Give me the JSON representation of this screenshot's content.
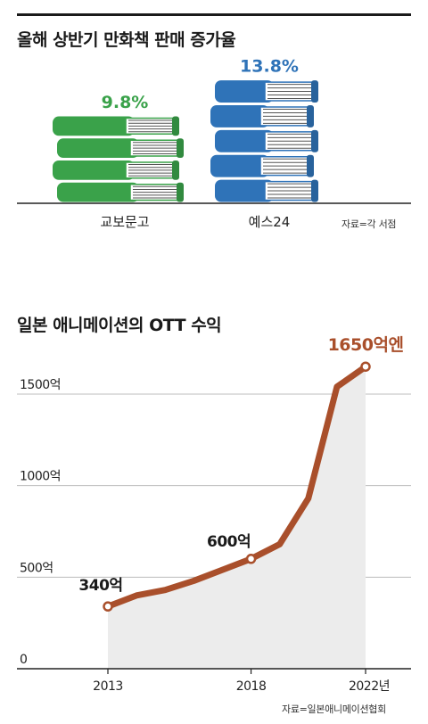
{
  "chart_data": [
    {
      "type": "bar",
      "title": "올해 상반기 만화책 판매 증가율",
      "categories": [
        "교보문고",
        "예스24"
      ],
      "values": [
        9.8,
        13.8
      ],
      "value_labels": [
        "9.8%",
        "13.8%"
      ],
      "unit": "%",
      "colors": [
        "#3aa24a",
        "#2f73b8"
      ],
      "source": "자료=각 서점"
    },
    {
      "type": "area",
      "title": "일본 애니메이션의 OTT 수익",
      "x": [
        2013,
        2014,
        2015,
        2016,
        2017,
        2018,
        2019,
        2020,
        2021,
        2022
      ],
      "values": [
        340,
        400,
        430,
        480,
        540,
        600,
        680,
        930,
        1540,
        1650
      ],
      "x_ticks": [
        "2013",
        "2018",
        "2022년"
      ],
      "x_tick_values": [
        2013,
        2018,
        2022
      ],
      "y_ticks": [
        "0",
        "500억",
        "1000억",
        "1500억"
      ],
      "y_tick_values": [
        0,
        500,
        1000,
        1500
      ],
      "ylim": [
        0,
        1650
      ],
      "annotations": [
        {
          "x": 2013,
          "label": "340억"
        },
        {
          "x": 2018,
          "label": "600억"
        },
        {
          "x": 2022,
          "label": "1650억엔"
        }
      ],
      "colors": {
        "line": "#a94f2b",
        "area": "#ececec",
        "label_end": "#a94f2b"
      },
      "source": "자료=일본애니메이션협회"
    }
  ]
}
